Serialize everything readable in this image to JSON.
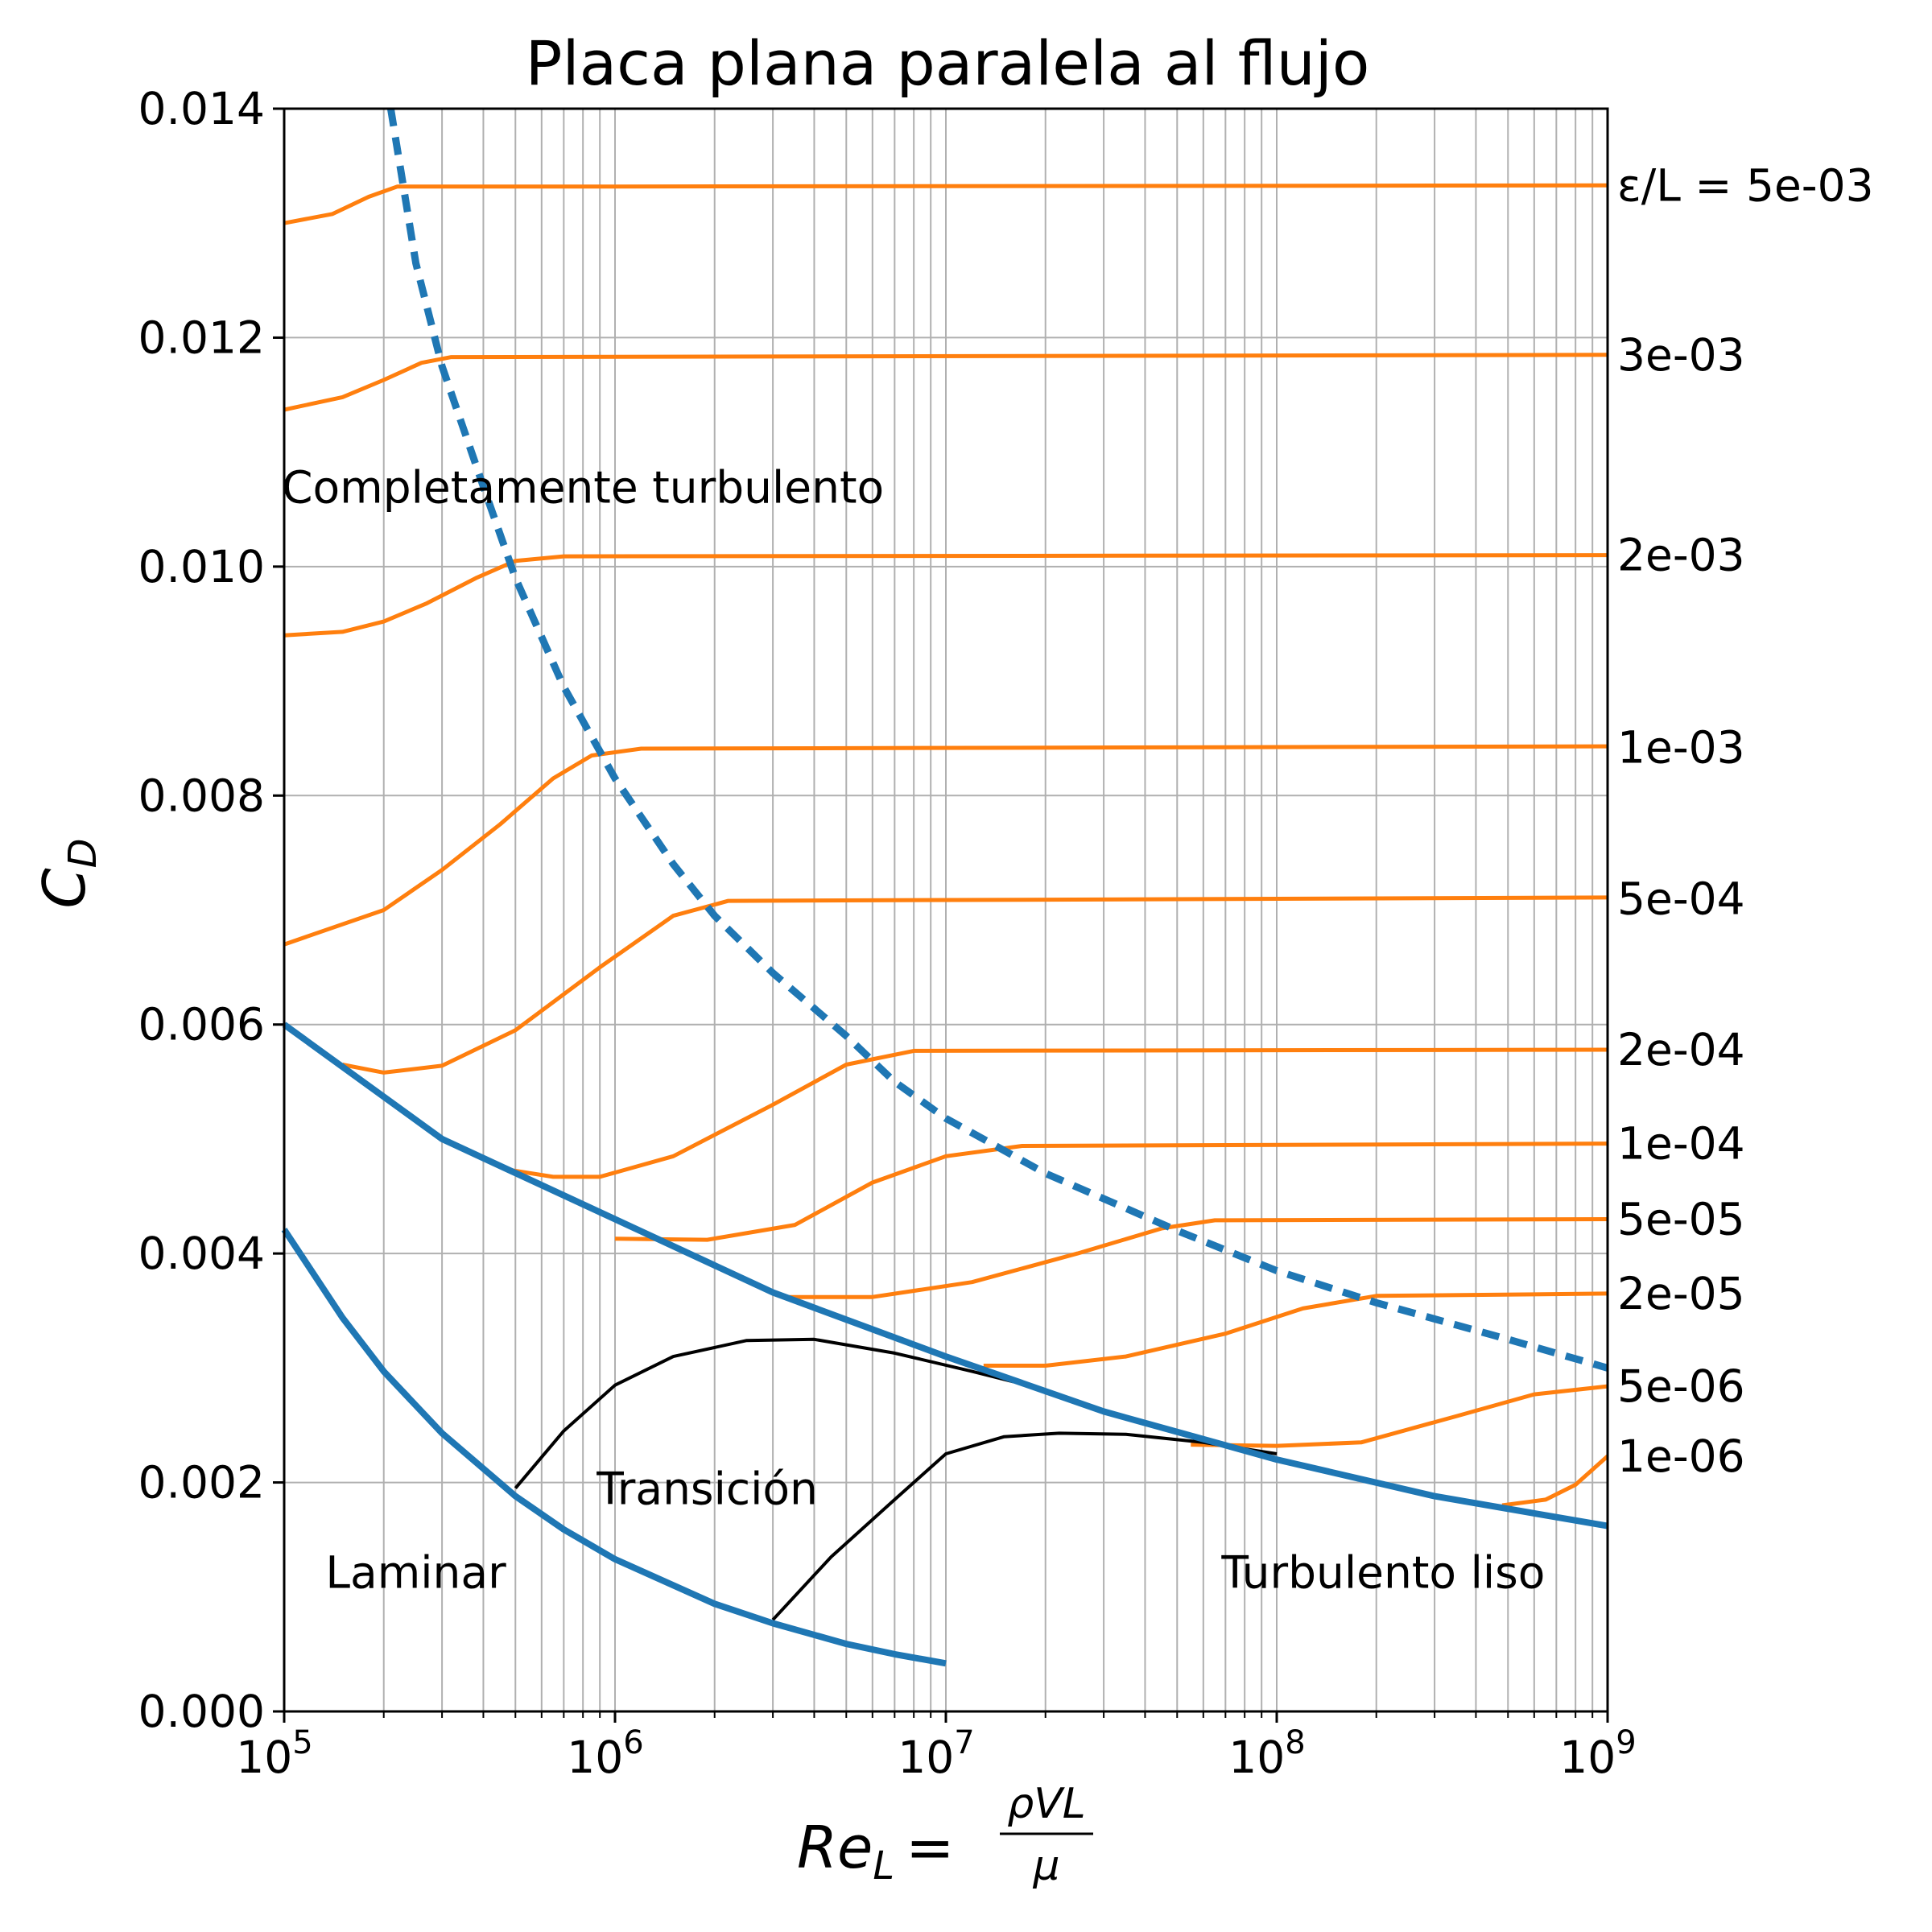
{
  "chart_data": {
    "type": "line",
    "title": "Placa plana paralela al flujo",
    "ylabel_main": "C",
    "ylabel_sub": "D",
    "xlabel_main": "Re",
    "xlabel_sub": "L",
    "xlabel_eq": "=",
    "xlabel_num": "ρVL",
    "xlabel_den": "μ",
    "x_scale": "log",
    "xlim": [
      100000,
      1000000000
    ],
    "ylim": [
      0,
      0.014
    ],
    "grid": "on (major and minor)",
    "x_ticks": [
      {
        "value": 100000,
        "base": "10",
        "exp": "5"
      },
      {
        "value": 1000000,
        "base": "10",
        "exp": "6"
      },
      {
        "value": 10000000,
        "base": "10",
        "exp": "7"
      },
      {
        "value": 100000000,
        "base": "10",
        "exp": "8"
      },
      {
        "value": 1000000000,
        "base": "10",
        "exp": "9"
      }
    ],
    "y_ticks": [
      {
        "value": 0,
        "label": "0.000"
      },
      {
        "value": 0.002,
        "label": "0.002"
      },
      {
        "value": 0.004,
        "label": "0.004"
      },
      {
        "value": 0.006,
        "label": "0.006"
      },
      {
        "value": 0.008,
        "label": "0.008"
      },
      {
        "value": 0.01,
        "label": "0.010"
      },
      {
        "value": 0.012,
        "label": "0.012"
      },
      {
        "value": 0.014,
        "label": "0.014"
      }
    ],
    "colors": {
      "laminar_turbulent": "#1f77b4",
      "rough": "#ff7f0e",
      "transition": "#000000"
    },
    "region_labels": [
      {
        "text": "Completamente turbulento",
        "x": 800000,
        "y": 0.0107
      },
      {
        "text": "Transición",
        "x": 1900000,
        "y": 0.00195
      },
      {
        "text": "Laminar",
        "x": 250000,
        "y": 0.00122
      },
      {
        "text": "Turbulento liso",
        "x": 210000000,
        "y": 0.00122
      }
    ],
    "rough_series": [
      {
        "label": "ε/L = 5e-03",
        "label_y": 0.01333,
        "points": [
          [
            100000,
            0.013
          ],
          [
            140000,
            0.01308
          ],
          [
            180000,
            0.01323
          ],
          [
            220000,
            0.01332
          ],
          [
            1000000,
            0.01332
          ],
          [
            1000000000,
            0.01333
          ]
        ]
      },
      {
        "label": "3e-03",
        "label_y": 0.01185,
        "points": [
          [
            100000,
            0.01137
          ],
          [
            150000,
            0.01148
          ],
          [
            200000,
            0.01163
          ],
          [
            260000,
            0.01178
          ],
          [
            320000,
            0.01183
          ],
          [
            1000000000,
            0.01185
          ]
        ]
      },
      {
        "label": "2e-03",
        "label_y": 0.0101,
        "points": [
          [
            100000,
            0.0094
          ],
          [
            150000,
            0.00943
          ],
          [
            200000,
            0.00952
          ],
          [
            270000,
            0.00968
          ],
          [
            380000,
            0.0099
          ],
          [
            500000,
            0.01005
          ],
          [
            700000,
            0.01009
          ],
          [
            1000000000,
            0.0101
          ]
        ]
      },
      {
        "label": "1e-03",
        "label_y": 0.00842,
        "points": [
          [
            100000,
            0.0067
          ],
          [
            200000,
            0.007
          ],
          [
            300000,
            0.00735
          ],
          [
            450000,
            0.00775
          ],
          [
            650000,
            0.00815
          ],
          [
            850000,
            0.00835
          ],
          [
            1200000,
            0.00841
          ],
          [
            1000000000,
            0.00843
          ]
        ]
      },
      {
        "label": "5e-04",
        "label_y": 0.0071,
        "points": [
          [
            150000,
            0.00565
          ],
          [
            200000,
            0.00558
          ],
          [
            300000,
            0.00564
          ],
          [
            500000,
            0.00595
          ],
          [
            900000,
            0.0065
          ],
          [
            1500000,
            0.00695
          ],
          [
            2200000,
            0.00708
          ],
          [
            1000000000,
            0.00711
          ]
        ]
      },
      {
        "label": "2e-04",
        "label_y": 0.00578,
        "points": [
          [
            480000,
            0.00473
          ],
          [
            650000,
            0.00467
          ],
          [
            900000,
            0.00467
          ],
          [
            1500000,
            0.00485
          ],
          [
            3000000,
            0.0053
          ],
          [
            5000000,
            0.00565
          ],
          [
            8000000,
            0.00577
          ],
          [
            1000000000,
            0.00578
          ]
        ]
      },
      {
        "label": "1e-04",
        "label_y": 0.00496,
        "points": [
          [
            1000000,
            0.00413
          ],
          [
            1900000,
            0.00412
          ],
          [
            3500000,
            0.00425
          ],
          [
            6000000,
            0.00462
          ],
          [
            10000000,
            0.00485
          ],
          [
            17000000,
            0.00494
          ],
          [
            1000000000,
            0.00496
          ]
        ]
      },
      {
        "label": "5e-05",
        "label_y": 0.0043,
        "points": [
          [
            3300000,
            0.00362
          ],
          [
            6000000,
            0.00362
          ],
          [
            12000000,
            0.00375
          ],
          [
            25000000,
            0.004
          ],
          [
            45000000,
            0.00422
          ],
          [
            65000000,
            0.00429
          ],
          [
            1000000000,
            0.0043
          ]
        ]
      },
      {
        "label": "2e-05",
        "label_y": 0.00365,
        "points": [
          [
            13000000,
            0.00302
          ],
          [
            20000000,
            0.00302
          ],
          [
            35000000,
            0.0031
          ],
          [
            70000000,
            0.0033
          ],
          [
            120000000,
            0.00352
          ],
          [
            200000000,
            0.00363
          ],
          [
            1000000000,
            0.00365
          ]
        ]
      },
      {
        "label": "5e-06",
        "label_y": 0.00284,
        "points": [
          [
            55000000,
            0.00233
          ],
          [
            100000000,
            0.00232
          ],
          [
            180000000,
            0.00235
          ],
          [
            350000000,
            0.00258
          ],
          [
            600000000,
            0.00277
          ],
          [
            1000000000,
            0.00284
          ]
        ]
      },
      {
        "label": "1e-06",
        "label_y": 0.00223,
        "points": [
          [
            480000000,
            0.0018
          ],
          [
            650000000,
            0.00185
          ],
          [
            800000000,
            0.00198
          ],
          [
            1000000000,
            0.00223
          ]
        ]
      }
    ],
    "laminar_series": {
      "points": [
        [
          100000,
          0.00421
        ],
        [
          150000,
          0.00344
        ],
        [
          200000,
          0.00297
        ],
        [
          300000,
          0.00243
        ],
        [
          500000,
          0.00188
        ],
        [
          700000,
          0.00159
        ],
        [
          1000000,
          0.00133
        ],
        [
          2000000,
          0.00094
        ],
        [
          3000000,
          0.00077
        ],
        [
          5000000,
          0.00059
        ],
        [
          7000000,
          0.0005
        ],
        [
          10000000,
          0.00042
        ]
      ]
    },
    "turbulent_smooth_series": {
      "points": [
        [
          100000,
          0.006
        ],
        [
          300000,
          0.005
        ],
        [
          1000000,
          0.0043
        ],
        [
          3000000,
          0.00366
        ],
        [
          10000000,
          0.0031
        ],
        [
          30000000,
          0.00262
        ],
        [
          100000000,
          0.0022
        ],
        [
          300000000,
          0.00188
        ],
        [
          1000000000,
          0.00162
        ]
      ]
    },
    "fully_rough_boundary": {
      "points": [
        [
          210000,
          0.014
        ],
        [
          250000,
          0.01265
        ],
        [
          300000,
          0.01175
        ],
        [
          400000,
          0.0107
        ],
        [
          500000,
          0.0099
        ],
        [
          700000,
          0.00895
        ],
        [
          1000000,
          0.00815
        ],
        [
          1500000,
          0.0074
        ],
        [
          2000000,
          0.00695
        ],
        [
          3000000,
          0.00645
        ],
        [
          5000000,
          0.0059
        ],
        [
          7000000,
          0.0055
        ],
        [
          10000000,
          0.00518
        ],
        [
          20000000,
          0.0047
        ],
        [
          50000000,
          0.0042
        ],
        [
          100000000,
          0.00385
        ],
        [
          200000000,
          0.00357
        ],
        [
          500000000,
          0.00325
        ],
        [
          1000000000,
          0.003
        ]
      ]
    },
    "transition_curves": [
      {
        "points": [
          [
            500000,
            0.00195
          ],
          [
            700000,
            0.00245
          ],
          [
            1000000,
            0.00285
          ],
          [
            1500000,
            0.0031
          ],
          [
            2500000,
            0.00324
          ],
          [
            4000000,
            0.00325
          ],
          [
            7000000,
            0.00313
          ],
          [
            12000000,
            0.00297
          ],
          [
            16000000,
            0.00288
          ]
        ]
      },
      {
        "points": [
          [
            3000000,
            0.0008
          ],
          [
            4500000,
            0.00135
          ],
          [
            7000000,
            0.00185
          ],
          [
            10000000,
            0.00225
          ],
          [
            15000000,
            0.0024
          ],
          [
            22000000,
            0.00243
          ],
          [
            35000000,
            0.00242
          ],
          [
            60000000,
            0.00235
          ],
          [
            100000000,
            0.00225
          ]
        ]
      }
    ]
  }
}
